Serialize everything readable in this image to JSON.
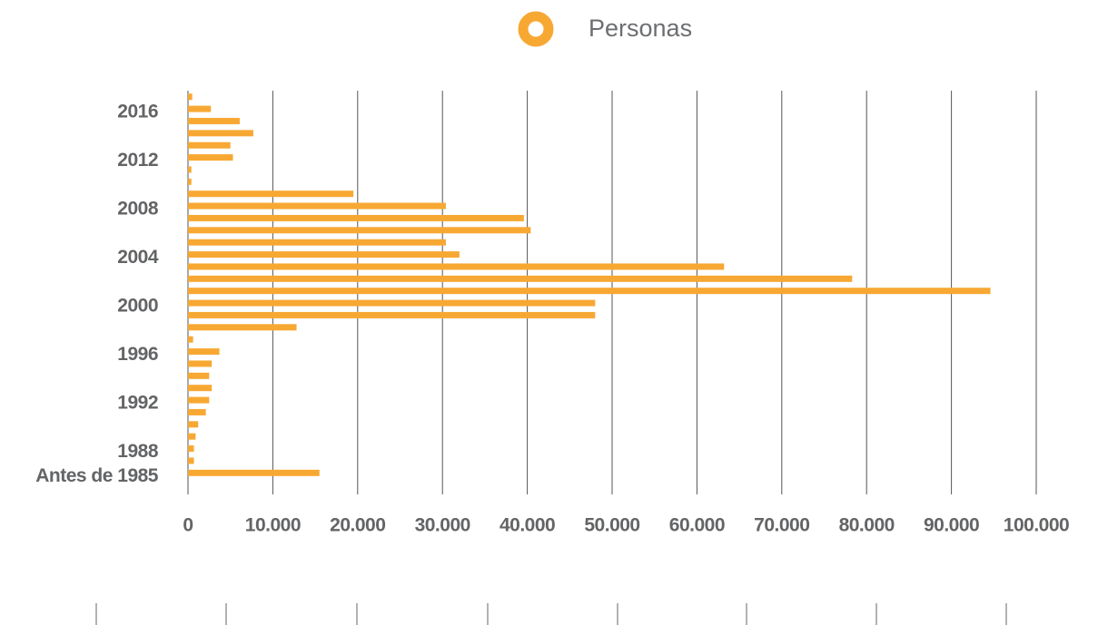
{
  "chart_data": {
    "type": "hbar",
    "categories": [
      null,
      "2016",
      null,
      null,
      null,
      "2012",
      null,
      null,
      null,
      "2008",
      null,
      null,
      null,
      "2004",
      null,
      null,
      null,
      "2000",
      null,
      null,
      null,
      "1996",
      null,
      null,
      null,
      "1992",
      null,
      null,
      null,
      "1988",
      null,
      "Antes de 1985"
    ],
    "series": [
      {
        "name": "Personas",
        "color": "#f7a833",
        "values": [
          500,
          2700,
          6100,
          7700,
          5000,
          5300,
          400,
          400,
          19500,
          30400,
          39600,
          40400,
          30400,
          32000,
          63200,
          78300,
          94600,
          48000,
          48000,
          12800,
          600,
          3700,
          2800,
          2500,
          2800,
          2500,
          2100,
          1200,
          900,
          700,
          700,
          15500
        ]
      }
    ],
    "xlim": [
      0,
      100000
    ],
    "xticks": [
      0,
      {
        "value": 10000,
        "label": "10.000"
      },
      {
        "value": 20000,
        "label": "20.000"
      },
      {
        "value": 30000,
        "label": "30.000"
      },
      {
        "value": 40000,
        "label": "40.000"
      },
      {
        "value": 50000,
        "label": "50.000"
      },
      {
        "value": 60000,
        "label": "60.000"
      },
      {
        "value": 70000,
        "label": "70.000"
      },
      {
        "value": 80000,
        "label": "80.000"
      },
      {
        "value": 90000,
        "label": "90.000"
      },
      {
        "value": 100000,
        "label": "100.000"
      }
    ],
    "grid": true
  }
}
